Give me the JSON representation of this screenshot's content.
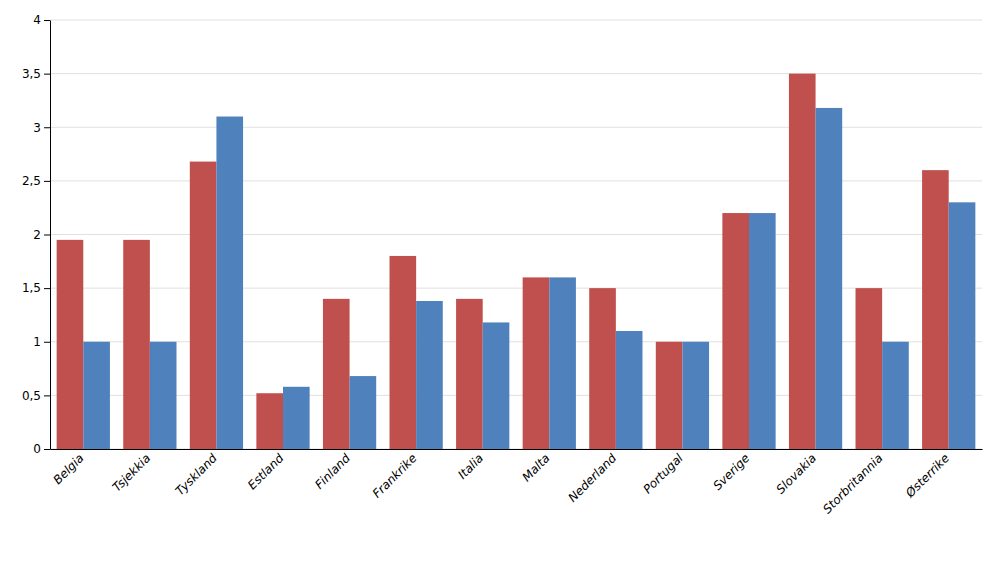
{
  "chart_data": {
    "type": "bar",
    "categories": [
      "Belgia",
      "Tsjekkia",
      "Tyskland",
      "Estland",
      "Finland",
      "Frankrike",
      "Italia",
      "Malta",
      "Nederland",
      "Portugal",
      "Sverige",
      "Slovakia",
      "Storbritannia",
      "Østerrike"
    ],
    "series": [
      {
        "color": "#C0504D",
        "values": [
          1.95,
          1.95,
          2.68,
          0.52,
          1.4,
          1.8,
          1.4,
          1.6,
          1.5,
          1.0,
          2.2,
          3.5,
          1.5,
          2.6
        ]
      },
      {
        "color": "#4F81BD",
        "values": [
          1.0,
          1.0,
          3.1,
          0.58,
          0.68,
          1.38,
          1.18,
          1.6,
          1.1,
          1.0,
          2.2,
          3.18,
          1.0,
          2.3
        ]
      }
    ],
    "ylim": [
      0,
      4.0
    ],
    "yticks": [
      0,
      {
        "value": 0.5,
        "label": "0,5"
      },
      1,
      {
        "value": 1.5,
        "label": "1,5"
      },
      2,
      {
        "value": 2.5,
        "label": "2,5"
      },
      3,
      {
        "value": 3.5,
        "label": "3,5"
      },
      4
    ],
    "grid": true
  }
}
